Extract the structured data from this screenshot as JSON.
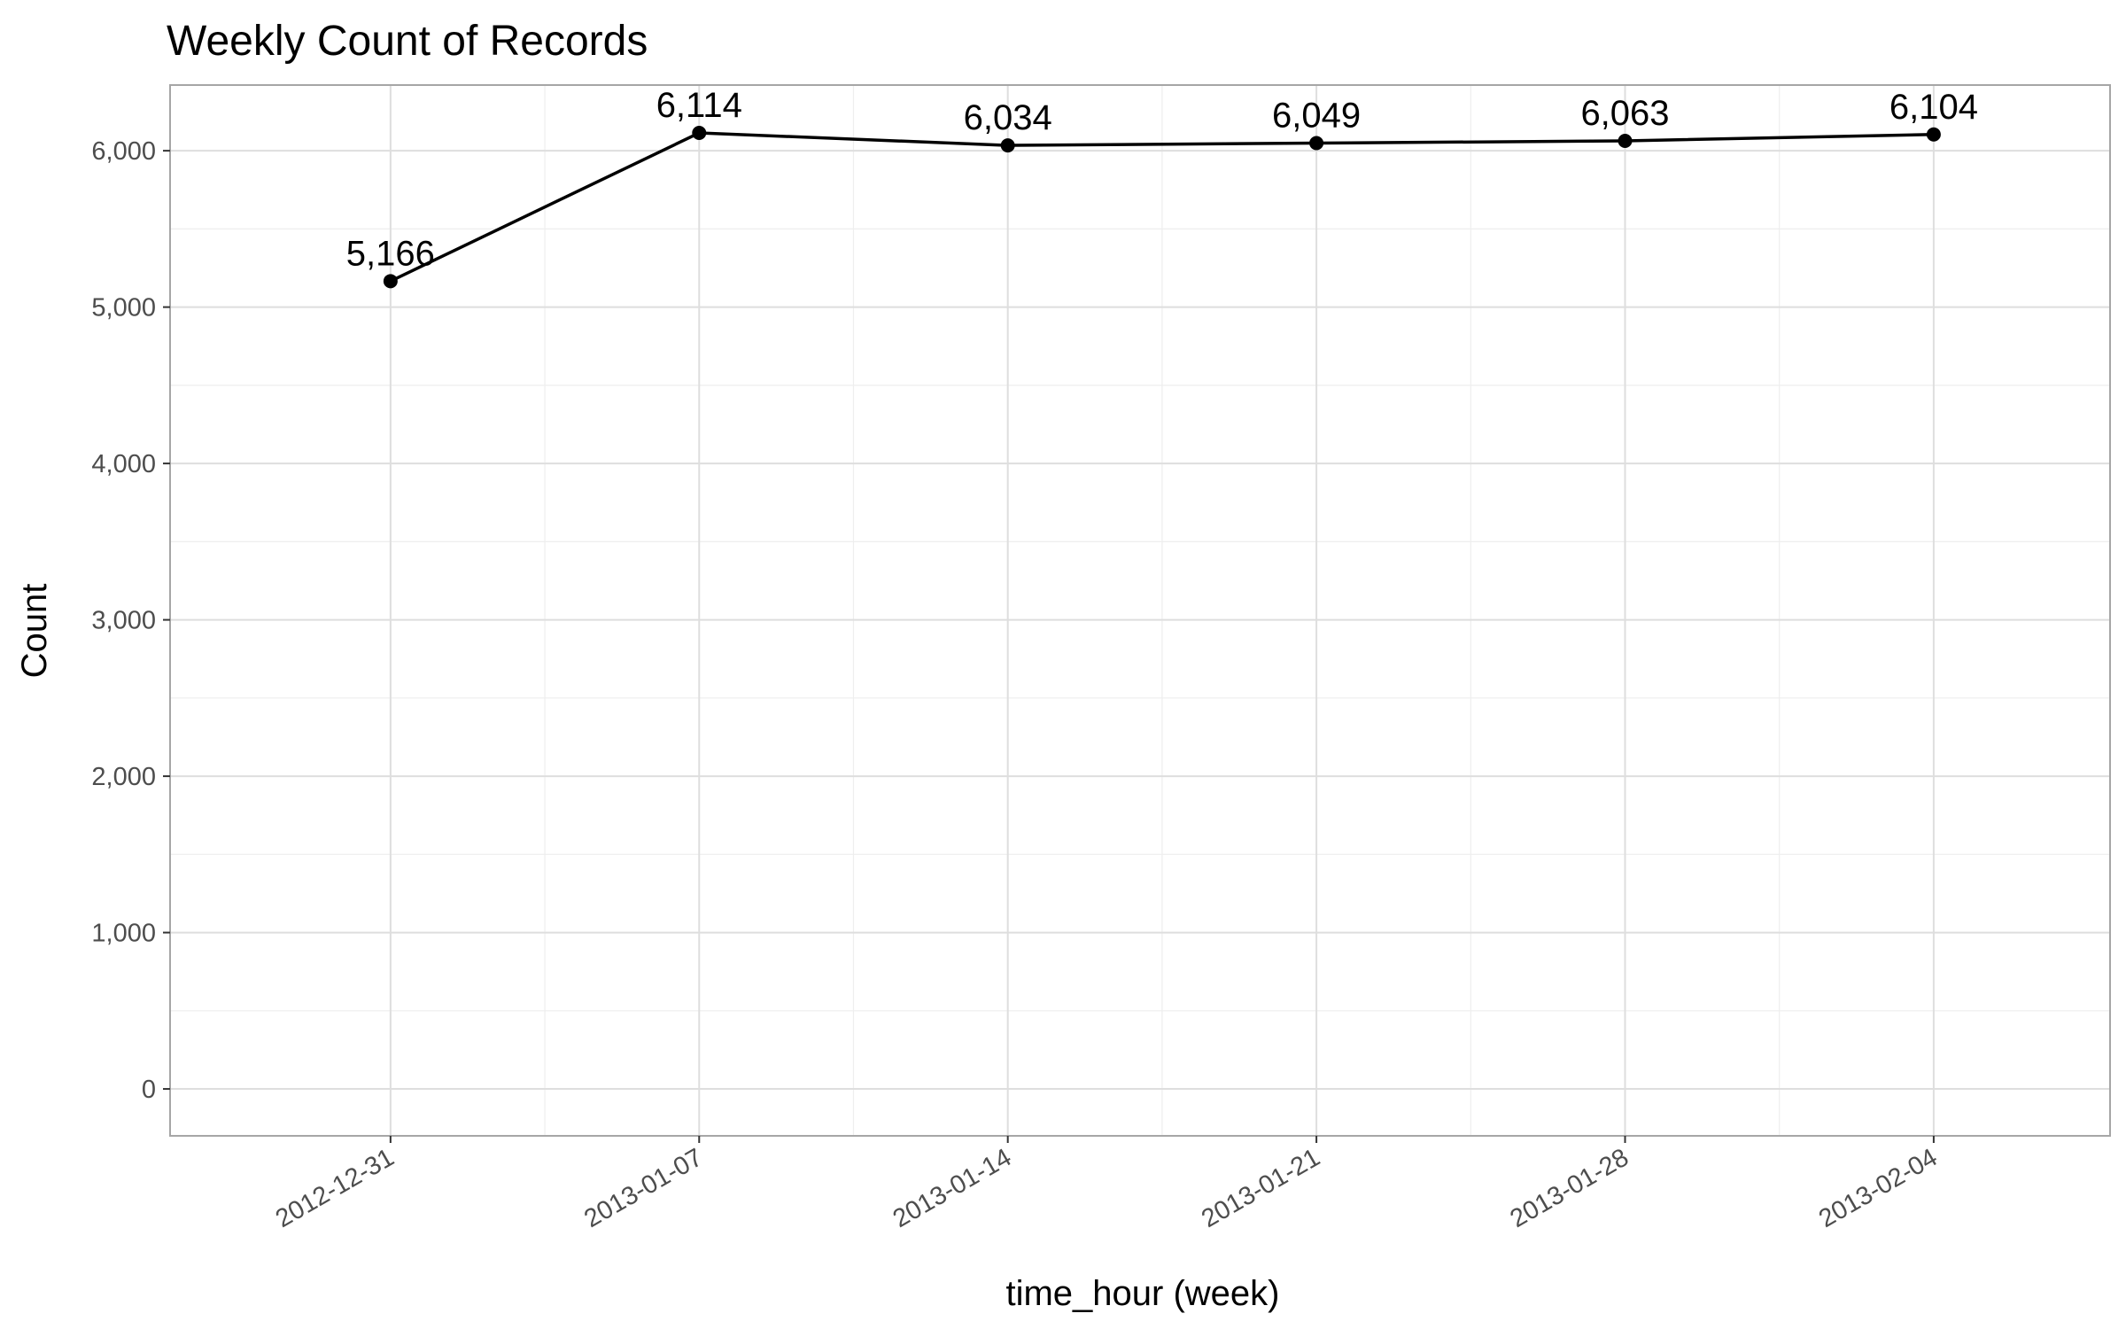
{
  "chart_data": {
    "type": "line",
    "title": "Weekly Count of Records",
    "xlabel": "time_hour (week)",
    "ylabel": "Count",
    "x": [
      "2012-12-31",
      "2013-01-07",
      "2013-01-14",
      "2013-01-21",
      "2013-01-28",
      "2013-02-04"
    ],
    "values": [
      5166,
      6114,
      6034,
      6049,
      6063,
      6104
    ],
    "data_labels": [
      "5,166",
      "6,114",
      "6,034",
      "6,049",
      "6,063",
      "6,104"
    ],
    "yticks": [
      0,
      1000,
      2000,
      3000,
      4000,
      5000,
      6000
    ],
    "ytick_labels": [
      "0",
      "1,000",
      "2,000",
      "3,000",
      "4,000",
      "5,000",
      "6,000"
    ],
    "ylim": [
      -300,
      6420
    ],
    "xlim": [
      "2012-12-26",
      "2013-02-08"
    ],
    "grid": true,
    "line_color": "#000000",
    "grid_color": "#dedede",
    "panel_border_color": "#a6a6a6"
  }
}
